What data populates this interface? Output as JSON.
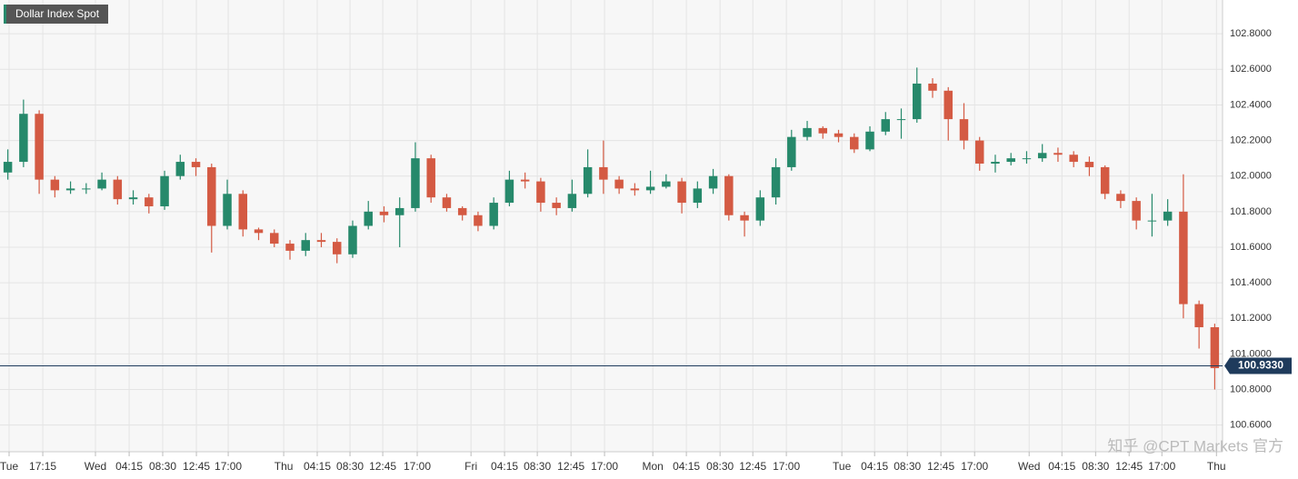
{
  "chart_data": {
    "type": "candlestick",
    "title": "Dollar Index Spot",
    "watermark": "知乎 @CPT Markets 官方",
    "up_color": "#26896b",
    "down_color": "#d45a43",
    "grid": true,
    "x": [
      0,
      1,
      2,
      3,
      4,
      5,
      6,
      7,
      8,
      9,
      10,
      11,
      12,
      13,
      14,
      15,
      16,
      17,
      18,
      19,
      20,
      21,
      22,
      23,
      24,
      25,
      26,
      27,
      28,
      29,
      30,
      31,
      32,
      33,
      34,
      35,
      36,
      37,
      38,
      39,
      40,
      41,
      42,
      43,
      44,
      45,
      46,
      47,
      48,
      49,
      50,
      51,
      52,
      53,
      54,
      55,
      56,
      57,
      58,
      59,
      60,
      61,
      62,
      63,
      64,
      65,
      66,
      67,
      68,
      69,
      70,
      71,
      72,
      73,
      74,
      75,
      76,
      77
    ],
    "open": [
      102.02,
      102.08,
      102.35,
      101.98,
      101.92,
      101.93,
      101.93,
      101.98,
      101.87,
      101.88,
      101.83,
      102.0,
      102.08,
      102.05,
      101.72,
      101.9,
      101.7,
      101.68,
      101.62,
      101.58,
      101.64,
      101.63,
      101.56,
      101.72,
      101.8,
      101.78,
      101.82,
      102.1,
      101.88,
      101.82,
      101.78,
      101.72,
      101.85,
      101.98,
      101.97,
      101.85,
      101.82,
      101.9,
      102.05,
      101.98,
      101.93,
      101.92,
      101.94,
      101.97,
      101.85,
      101.93,
      102.0,
      101.78,
      101.75,
      101.88,
      102.05,
      102.22,
      102.27,
      102.24,
      102.22,
      102.15,
      102.25,
      102.32,
      102.32,
      102.52,
      102.48,
      102.32,
      102.2,
      102.07,
      102.08,
      102.1,
      102.1,
      102.13,
      102.12,
      102.08,
      102.05,
      101.9,
      101.86,
      101.75,
      101.75,
      101.8,
      101.28,
      101.15
    ],
    "high": [
      102.15,
      102.43,
      102.37,
      102.0,
      101.97,
      101.96,
      102.02,
      102.0,
      101.92,
      101.9,
      102.03,
      102.12,
      102.1,
      102.07,
      101.98,
      101.92,
      101.71,
      101.7,
      101.64,
      101.68,
      101.68,
      101.65,
      101.75,
      101.86,
      101.83,
      101.88,
      102.19,
      102.12,
      101.9,
      101.83,
      101.8,
      101.88,
      102.03,
      102.02,
      101.99,
      101.88,
      101.98,
      102.15,
      102.2,
      102.0,
      101.96,
      102.03,
      102.01,
      101.99,
      101.97,
      102.04,
      102.01,
      101.8,
      101.92,
      102.1,
      102.26,
      102.31,
      102.28,
      102.26,
      102.24,
      102.28,
      102.36,
      102.38,
      102.61,
      102.55,
      102.5,
      102.41,
      102.22,
      102.12,
      102.13,
      102.14,
      102.18,
      102.16,
      102.14,
      102.11,
      102.06,
      101.92,
      101.88,
      101.9,
      101.87,
      102.01,
      101.3,
      101.17
    ],
    "low": [
      101.98,
      102.05,
      101.9,
      101.88,
      101.9,
      101.9,
      101.92,
      101.84,
      101.84,
      101.79,
      101.81,
      101.98,
      102.0,
      101.57,
      101.7,
      101.66,
      101.64,
      101.6,
      101.53,
      101.55,
      101.6,
      101.51,
      101.54,
      101.7,
      101.74,
      101.6,
      101.8,
      101.85,
      101.8,
      101.75,
      101.69,
      101.7,
      101.83,
      101.93,
      101.8,
      101.78,
      101.8,
      101.88,
      101.9,
      101.9,
      101.89,
      101.9,
      101.93,
      101.79,
      101.82,
      101.9,
      101.75,
      101.66,
      101.72,
      101.84,
      102.03,
      102.2,
      102.21,
      102.19,
      102.13,
      102.14,
      102.23,
      102.21,
      102.3,
      102.44,
      102.2,
      102.15,
      102.03,
      102.02,
      102.06,
      102.07,
      102.08,
      102.08,
      102.05,
      102.0,
      101.87,
      101.82,
      101.7,
      101.66,
      101.72,
      101.2,
      101.03,
      100.8
    ],
    "close": [
      102.08,
      102.35,
      101.98,
      101.92,
      101.93,
      101.93,
      101.98,
      101.87,
      101.88,
      101.83,
      102.0,
      102.08,
      102.05,
      101.72,
      101.9,
      101.7,
      101.68,
      101.62,
      101.58,
      101.64,
      101.63,
      101.56,
      101.72,
      101.8,
      101.78,
      101.82,
      102.1,
      101.88,
      101.82,
      101.78,
      101.72,
      101.85,
      101.98,
      101.97,
      101.85,
      101.82,
      101.9,
      102.05,
      101.98,
      101.93,
      101.92,
      101.94,
      101.97,
      101.85,
      101.93,
      102.0,
      101.78,
      101.75,
      101.88,
      102.05,
      102.22,
      102.27,
      102.24,
      102.22,
      102.15,
      102.25,
      102.32,
      102.32,
      102.52,
      102.48,
      102.32,
      102.2,
      102.07,
      102.08,
      102.1,
      102.1,
      102.13,
      102.12,
      102.08,
      102.05,
      101.9,
      101.86,
      101.75,
      101.75,
      101.8,
      101.28,
      101.15,
      100.92
    ],
    "last": {
      "value": 100.933,
      "label": "100.9330"
    },
    "last_color": "#1f3b5c",
    "xlim": [
      0,
      78
    ],
    "ylim": [
      100.45,
      102.99
    ],
    "yticks": [
      {
        "value": 100.6,
        "label": "100.6000"
      },
      {
        "value": 100.8,
        "label": "100.8000"
      },
      {
        "value": 101.0,
        "label": "101.0000"
      },
      {
        "value": 101.2,
        "label": "101.2000"
      },
      {
        "value": 101.4,
        "label": "101.4000"
      },
      {
        "value": 101.6,
        "label": "101.6000"
      },
      {
        "value": 101.8,
        "label": "101.8000"
      },
      {
        "value": 102.0,
        "label": "102.0000"
      },
      {
        "value": 102.2,
        "label": "102.2000"
      },
      {
        "value": 102.4,
        "label": "102.4000"
      },
      {
        "value": 102.6,
        "label": "102.6000"
      },
      {
        "value": 102.8,
        "label": "102.8000"
      }
    ],
    "xticks": [
      {
        "value": 0.58,
        "label": "Tue"
      },
      {
        "value": 2.73,
        "label": "17:15"
      },
      {
        "value": 6.09,
        "label": "Wed"
      },
      {
        "value": 8.24,
        "label": "04:15"
      },
      {
        "value": 10.38,
        "label": "08:30"
      },
      {
        "value": 12.53,
        "label": "12:45"
      },
      {
        "value": 14.56,
        "label": "17:00"
      },
      {
        "value": 18.1,
        "label": "Thu"
      },
      {
        "value": 20.24,
        "label": "04:15"
      },
      {
        "value": 22.33,
        "label": "08:30"
      },
      {
        "value": 24.42,
        "label": "12:45"
      },
      {
        "value": 26.62,
        "label": "17:00"
      },
      {
        "value": 30.05,
        "label": "Fri"
      },
      {
        "value": 32.19,
        "label": "04:15"
      },
      {
        "value": 34.28,
        "label": "08:30"
      },
      {
        "value": 36.43,
        "label": "12:45"
      },
      {
        "value": 38.57,
        "label": "17:00"
      },
      {
        "value": 41.65,
        "label": "Mon"
      },
      {
        "value": 43.79,
        "label": "04:15"
      },
      {
        "value": 45.94,
        "label": "08:30"
      },
      {
        "value": 48.03,
        "label": "12:45"
      },
      {
        "value": 50.17,
        "label": "17:00"
      },
      {
        "value": 53.71,
        "label": "Tue"
      },
      {
        "value": 55.8,
        "label": "04:15"
      },
      {
        "value": 57.89,
        "label": "08:30"
      },
      {
        "value": 60.03,
        "label": "12:45"
      },
      {
        "value": 62.18,
        "label": "17:00"
      },
      {
        "value": 65.66,
        "label": "Wed"
      },
      {
        "value": 67.75,
        "label": "04:15"
      },
      {
        "value": 69.9,
        "label": "08:30"
      },
      {
        "value": 72.04,
        "label": "12:45"
      },
      {
        "value": 74.13,
        "label": "17:00"
      },
      {
        "value": 77.61,
        "label": "Thu"
      }
    ]
  }
}
